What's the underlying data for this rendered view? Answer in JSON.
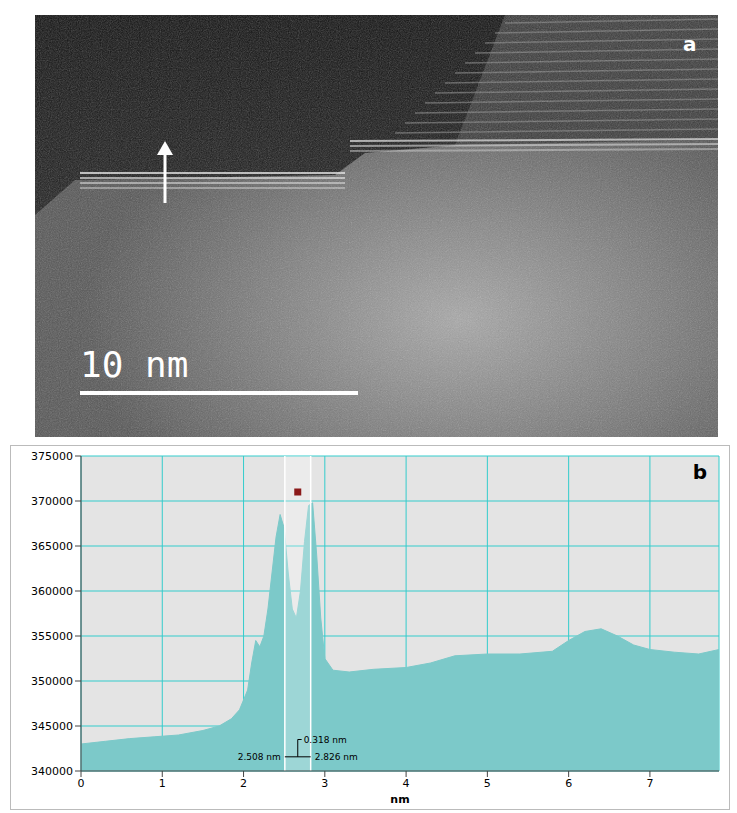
{
  "image": {
    "label": "a",
    "scale_bar": "10 nm"
  },
  "chart_data": {
    "type": "area",
    "label": "b",
    "x_label": "nm",
    "x": [
      0,
      0.3,
      0.6,
      0.9,
      1.2,
      1.5,
      1.7,
      1.85,
      1.95,
      2.05,
      2.1,
      2.15,
      2.2,
      2.25,
      2.3,
      2.35,
      2.4,
      2.45,
      2.5,
      2.55,
      2.6,
      2.65,
      2.7,
      2.75,
      2.8,
      2.85,
      2.9,
      2.95,
      3.0,
      3.1,
      3.3,
      3.6,
      4.0,
      4.3,
      4.6,
      5.0,
      5.4,
      5.8,
      6.0,
      6.2,
      6.4,
      6.6,
      6.8,
      7.0,
      7.3,
      7.6,
      7.85
    ],
    "values": [
      343000,
      343300,
      343600,
      343800,
      344000,
      344500,
      345000,
      345800,
      346800,
      349000,
      352000,
      354500,
      353800,
      355000,
      358000,
      362000,
      366000,
      368500,
      367000,
      362000,
      358000,
      357000,
      360000,
      365500,
      369500,
      369800,
      364000,
      357000,
      352500,
      351200,
      351000,
      351300,
      351500,
      352000,
      352800,
      353000,
      353000,
      353300,
      354500,
      355500,
      355800,
      355000,
      354000,
      353500,
      353200,
      353000,
      353500
    ],
    "color": "#7cc9c9",
    "xlim": [
      0,
      7.85
    ],
    "ylim": [
      340000,
      375000
    ],
    "xticks": [
      0,
      1,
      2,
      3,
      4,
      5,
      6,
      7
    ],
    "yticks": [
      340000,
      345000,
      350000,
      355000,
      360000,
      365000,
      370000,
      375000
    ],
    "grid": true,
    "annotations": [
      {
        "text": "2.508 nm",
        "x": 2.508
      },
      {
        "text": "2.826 nm",
        "x": 2.826
      },
      {
        "text": "0.318 nm",
        "value": 0.318
      }
    ],
    "marker_point": {
      "x": 2.667,
      "y": 371000,
      "color": "#8b1a1a"
    }
  }
}
